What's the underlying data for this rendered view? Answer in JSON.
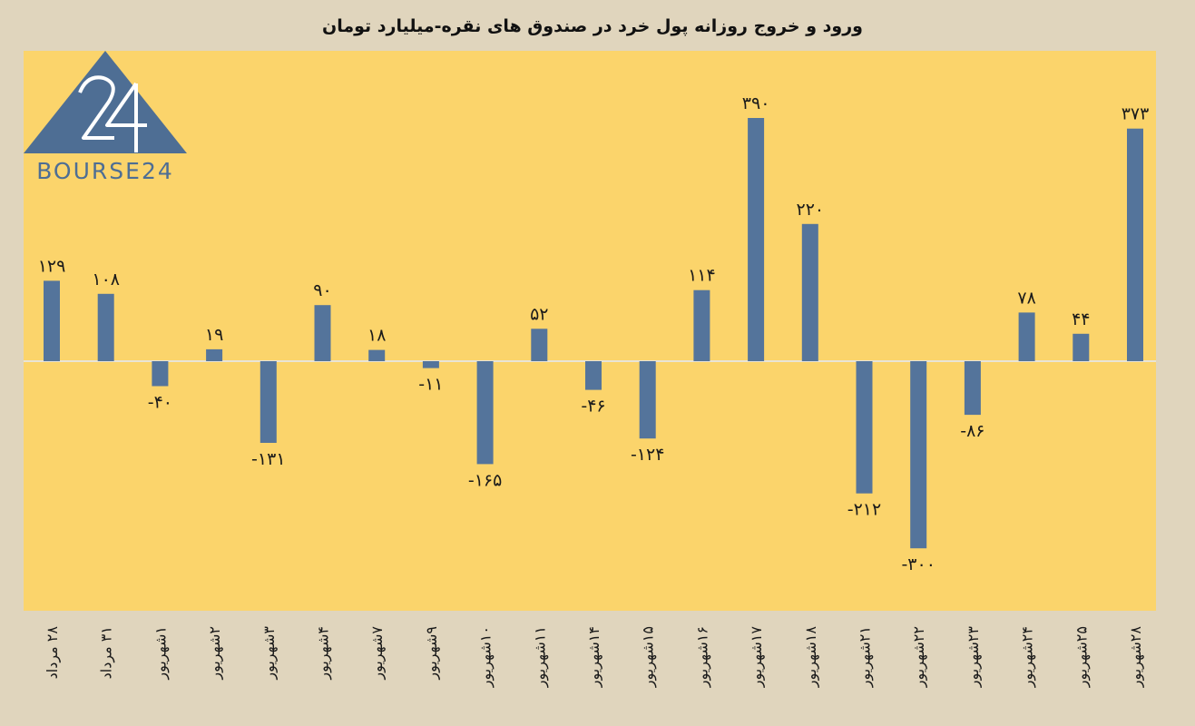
{
  "colors": {
    "background": "#e0d5bd",
    "plot_area": "#fbd46b",
    "bar": "#54749b",
    "logo": "#4e6e94"
  },
  "logo": {
    "glyph": "24",
    "text": "BOURSE24"
  },
  "chart_data": {
    "type": "bar",
    "title": "ورود و خروج روزانه پول خرد در صندوق های نقره-میلیارد تومان",
    "categories": [
      "۲۸ مرداد",
      "۳۱ مرداد",
      "۱شهریور",
      "۲شهریور",
      "۳شهریور",
      "۴شهریور",
      "۷شهریور",
      "۹شهریور",
      "۱۰شهریور",
      "۱۱شهریور",
      "۱۴شهریور",
      "۱۵شهریور",
      "۱۶شهریور",
      "۱۷شهریور",
      "۱۸شهریور",
      "۲۱شهریور",
      "۲۲شهریور",
      "۲۳شهریور",
      "۲۴شهریور",
      "۲۵شهریور",
      "۲۸شهریور"
    ],
    "values": [
      129,
      108,
      -40,
      19,
      -131,
      90,
      18,
      -11,
      -165,
      52,
      -46,
      -124,
      114,
      390,
      220,
      -212,
      -300,
      -86,
      78,
      44,
      373
    ],
    "data_labels": [
      "۱۲۹",
      "۱۰۸",
      "-۴۰",
      "۱۹",
      "-۱۳۱",
      "۹۰",
      "۱۸",
      "-۱۱",
      "-۱۶۵",
      "۵۲",
      "-۴۶",
      "-۱۲۴",
      "۱۱۴",
      "۳۹۰",
      "۲۲۰",
      "-۲۱۲",
      "-۳۰۰",
      "-۸۶",
      "۷۸",
      "۴۴",
      "۳۷۳"
    ],
    "ylim": [
      -400,
      400
    ],
    "grid": false,
    "legend": "none"
  }
}
